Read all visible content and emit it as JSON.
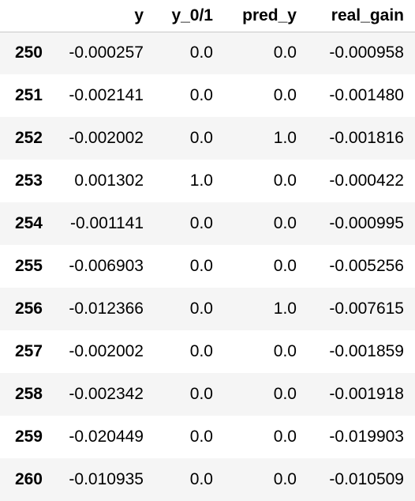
{
  "columns": [
    "",
    "y",
    "y_0/1",
    "pred_y",
    "real_gain"
  ],
  "rows": [
    {
      "index": "250",
      "y": "-0.000257",
      "y01": "0.0",
      "pred_y": "0.0",
      "real_gain": "-0.000958"
    },
    {
      "index": "251",
      "y": "-0.002141",
      "y01": "0.0",
      "pred_y": "0.0",
      "real_gain": "-0.001480"
    },
    {
      "index": "252",
      "y": "-0.002002",
      "y01": "0.0",
      "pred_y": "1.0",
      "real_gain": "-0.001816"
    },
    {
      "index": "253",
      "y": "0.001302",
      "y01": "1.0",
      "pred_y": "0.0",
      "real_gain": "-0.000422"
    },
    {
      "index": "254",
      "y": "-0.001141",
      "y01": "0.0",
      "pred_y": "0.0",
      "real_gain": "-0.000995"
    },
    {
      "index": "255",
      "y": "-0.006903",
      "y01": "0.0",
      "pred_y": "0.0",
      "real_gain": "-0.005256"
    },
    {
      "index": "256",
      "y": "-0.012366",
      "y01": "0.0",
      "pred_y": "1.0",
      "real_gain": "-0.007615"
    },
    {
      "index": "257",
      "y": "-0.002002",
      "y01": "0.0",
      "pred_y": "0.0",
      "real_gain": "-0.001859"
    },
    {
      "index": "258",
      "y": "-0.002342",
      "y01": "0.0",
      "pred_y": "0.0",
      "real_gain": "-0.001918"
    },
    {
      "index": "259",
      "y": "-0.020449",
      "y01": "0.0",
      "pred_y": "0.0",
      "real_gain": "-0.019903"
    },
    {
      "index": "260",
      "y": "-0.010935",
      "y01": "0.0",
      "pred_y": "0.0",
      "real_gain": "-0.010509"
    }
  ],
  "colors": {
    "stripe": "#f5f5f5",
    "background": "#ffffff",
    "header_rule": "#c8c8c8",
    "text": "#000000"
  }
}
